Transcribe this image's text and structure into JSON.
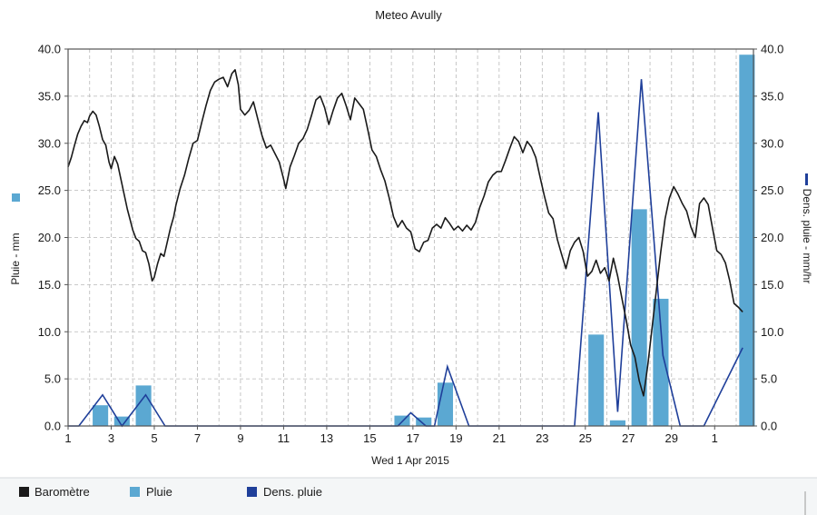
{
  "chart_data": {
    "type": "bar",
    "title": "Meteo  Avully",
    "xlabel": "Wed 1 Apr 2015",
    "ylabel_left": "Pluie - mm",
    "ylabel_right": "Dens. pluie - mm/hr",
    "x_tick_labels": [
      "1",
      "3",
      "5",
      "7",
      "9",
      "11",
      "13",
      "15",
      "17",
      "19",
      "21",
      "23",
      "25",
      "27",
      "29",
      "1"
    ],
    "y_ticks": [
      "0.0",
      "5.0",
      "10.0",
      "15.0",
      "20.0",
      "25.0",
      "30.0",
      "35.0",
      "40.0"
    ],
    "ylim": [
      0,
      40
    ],
    "xlim": [
      1,
      32.8
    ],
    "grid": true,
    "legend_position": "bottom-left",
    "colors": {
      "barometre": "#1a1a1a",
      "pluie": "#5ba8d2",
      "dens_pluie": "#1f3f9a",
      "grid": "#b8b8b8",
      "frame": "#555555"
    },
    "series": [
      {
        "name": "Baromètre",
        "type": "line",
        "axis": "left",
        "points": [
          [
            1.0,
            27.5
          ],
          [
            1.15,
            28.5
          ],
          [
            1.3,
            29.8
          ],
          [
            1.45,
            31.0
          ],
          [
            1.6,
            31.8
          ],
          [
            1.75,
            32.4
          ],
          [
            1.9,
            32.2
          ],
          [
            2.0,
            32.9
          ],
          [
            2.15,
            33.4
          ],
          [
            2.3,
            33.0
          ],
          [
            2.45,
            31.8
          ],
          [
            2.6,
            30.4
          ],
          [
            2.75,
            29.8
          ],
          [
            2.9,
            28.0
          ],
          [
            3.0,
            27.3
          ],
          [
            3.15,
            28.6
          ],
          [
            3.3,
            27.8
          ],
          [
            3.45,
            26.2
          ],
          [
            3.6,
            24.6
          ],
          [
            3.75,
            23.0
          ],
          [
            3.9,
            21.7
          ],
          [
            4.0,
            20.8
          ],
          [
            4.15,
            19.9
          ],
          [
            4.3,
            19.6
          ],
          [
            4.45,
            18.6
          ],
          [
            4.6,
            18.4
          ],
          [
            4.75,
            17.2
          ],
          [
            4.9,
            15.4
          ],
          [
            5.0,
            15.8
          ],
          [
            5.15,
            17.2
          ],
          [
            5.3,
            18.3
          ],
          [
            5.45,
            18.0
          ],
          [
            5.6,
            19.5
          ],
          [
            5.75,
            21.0
          ],
          [
            5.9,
            22.2
          ],
          [
            6.0,
            23.4
          ],
          [
            6.2,
            25.2
          ],
          [
            6.4,
            26.6
          ],
          [
            6.6,
            28.4
          ],
          [
            6.8,
            30.0
          ],
          [
            7.0,
            30.3
          ],
          [
            7.2,
            32.2
          ],
          [
            7.4,
            34.0
          ],
          [
            7.6,
            35.6
          ],
          [
            7.8,
            36.5
          ],
          [
            8.0,
            36.8
          ],
          [
            8.2,
            37.0
          ],
          [
            8.4,
            36.0
          ],
          [
            8.6,
            37.4
          ],
          [
            8.75,
            37.8
          ],
          [
            8.9,
            36.2
          ],
          [
            9.0,
            33.6
          ],
          [
            9.2,
            33.0
          ],
          [
            9.4,
            33.5
          ],
          [
            9.6,
            34.4
          ],
          [
            9.8,
            32.6
          ],
          [
            10.0,
            30.8
          ],
          [
            10.2,
            29.5
          ],
          [
            10.4,
            29.8
          ],
          [
            10.6,
            28.9
          ],
          [
            10.8,
            28.0
          ],
          [
            11.0,
            26.2
          ],
          [
            11.1,
            25.2
          ],
          [
            11.3,
            27.5
          ],
          [
            11.5,
            28.7
          ],
          [
            11.7,
            30.0
          ],
          [
            11.9,
            30.5
          ],
          [
            12.1,
            31.5
          ],
          [
            12.3,
            33.0
          ],
          [
            12.5,
            34.6
          ],
          [
            12.7,
            35.0
          ],
          [
            12.9,
            33.8
          ],
          [
            13.1,
            32.0
          ],
          [
            13.3,
            33.5
          ],
          [
            13.5,
            34.8
          ],
          [
            13.7,
            35.3
          ],
          [
            13.9,
            34.0
          ],
          [
            14.1,
            32.5
          ],
          [
            14.3,
            34.8
          ],
          [
            14.5,
            34.2
          ],
          [
            14.7,
            33.6
          ],
          [
            14.9,
            31.5
          ],
          [
            15.1,
            29.3
          ],
          [
            15.3,
            28.6
          ],
          [
            15.5,
            27.2
          ],
          [
            15.7,
            26.0
          ],
          [
            15.9,
            24.2
          ],
          [
            16.1,
            22.2
          ],
          [
            16.3,
            21.1
          ],
          [
            16.5,
            21.8
          ],
          [
            16.7,
            21.0
          ],
          [
            16.9,
            20.6
          ],
          [
            17.1,
            18.8
          ],
          [
            17.3,
            18.5
          ],
          [
            17.5,
            19.5
          ],
          [
            17.7,
            19.7
          ],
          [
            17.9,
            21.0
          ],
          [
            18.1,
            21.4
          ],
          [
            18.3,
            21.0
          ],
          [
            18.5,
            22.1
          ],
          [
            18.7,
            21.5
          ],
          [
            18.9,
            20.8
          ],
          [
            19.1,
            21.2
          ],
          [
            19.3,
            20.7
          ],
          [
            19.5,
            21.3
          ],
          [
            19.7,
            20.8
          ],
          [
            19.9,
            21.6
          ],
          [
            20.1,
            23.2
          ],
          [
            20.3,
            24.4
          ],
          [
            20.5,
            25.9
          ],
          [
            20.7,
            26.6
          ],
          [
            20.9,
            27.0
          ],
          [
            21.1,
            27.0
          ],
          [
            21.3,
            28.2
          ],
          [
            21.5,
            29.5
          ],
          [
            21.7,
            30.7
          ],
          [
            21.9,
            30.2
          ],
          [
            22.1,
            29.0
          ],
          [
            22.3,
            30.2
          ],
          [
            22.5,
            29.6
          ],
          [
            22.7,
            28.5
          ],
          [
            22.9,
            26.4
          ],
          [
            23.1,
            24.4
          ],
          [
            23.3,
            22.6
          ],
          [
            23.5,
            22.0
          ],
          [
            23.7,
            19.8
          ],
          [
            23.9,
            18.2
          ],
          [
            24.1,
            16.7
          ],
          [
            24.3,
            18.6
          ],
          [
            24.5,
            19.5
          ],
          [
            24.7,
            20.0
          ],
          [
            24.9,
            18.5
          ],
          [
            25.1,
            15.9
          ],
          [
            25.3,
            16.4
          ],
          [
            25.5,
            17.6
          ],
          [
            25.7,
            16.2
          ],
          [
            25.9,
            16.8
          ],
          [
            26.1,
            15.4
          ],
          [
            26.3,
            17.8
          ],
          [
            26.5,
            15.9
          ],
          [
            26.7,
            13.5
          ],
          [
            26.9,
            11.2
          ],
          [
            27.1,
            8.6
          ],
          [
            27.3,
            7.3
          ],
          [
            27.5,
            4.8
          ],
          [
            27.7,
            3.2
          ],
          [
            27.9,
            6.5
          ],
          [
            28.1,
            10.5
          ],
          [
            28.3,
            14.5
          ],
          [
            28.5,
            18.5
          ],
          [
            28.7,
            22.0
          ],
          [
            28.9,
            24.2
          ],
          [
            29.1,
            25.4
          ],
          [
            29.3,
            24.6
          ],
          [
            29.5,
            23.6
          ],
          [
            29.7,
            22.8
          ],
          [
            29.9,
            21.1
          ],
          [
            30.1,
            20.0
          ],
          [
            30.3,
            23.6
          ],
          [
            30.5,
            24.2
          ],
          [
            30.7,
            23.5
          ],
          [
            30.9,
            21.0
          ],
          [
            31.1,
            18.6
          ],
          [
            31.3,
            18.2
          ],
          [
            31.5,
            17.3
          ],
          [
            31.7,
            15.4
          ],
          [
            31.9,
            13.0
          ],
          [
            32.1,
            12.6
          ],
          [
            32.3,
            12.1
          ]
        ]
      },
      {
        "name": "Pluie",
        "type": "bar",
        "axis": "left",
        "bars": [
          {
            "x": 2.5,
            "value": 2.2
          },
          {
            "x": 3.5,
            "value": 1.0
          },
          {
            "x": 4.5,
            "value": 4.3
          },
          {
            "x": 16.5,
            "value": 1.1
          },
          {
            "x": 17.5,
            "value": 0.9
          },
          {
            "x": 18.5,
            "value": 4.6
          },
          {
            "x": 25.5,
            "value": 9.7
          },
          {
            "x": 26.5,
            "value": 0.6
          },
          {
            "x": 27.5,
            "value": 23.0
          },
          {
            "x": 28.5,
            "value": 13.5
          },
          {
            "x": 32.5,
            "value": 39.4
          }
        ]
      },
      {
        "name": "Dens. pluie",
        "type": "line",
        "axis": "right",
        "points": [
          [
            1.0,
            0.0
          ],
          [
            1.5,
            0.0
          ],
          [
            2.6,
            3.3
          ],
          [
            3.5,
            0.0
          ],
          [
            4.6,
            3.3
          ],
          [
            5.5,
            0.0
          ],
          [
            15.5,
            0.0
          ],
          [
            16.3,
            0.0
          ],
          [
            16.9,
            1.4
          ],
          [
            17.6,
            0.0
          ],
          [
            18.0,
            0.0
          ],
          [
            18.6,
            6.3
          ],
          [
            19.6,
            0.0
          ],
          [
            24.5,
            0.0
          ],
          [
            25.6,
            33.3
          ],
          [
            26.5,
            1.5
          ],
          [
            27.6,
            36.8
          ],
          [
            28.6,
            7.5
          ],
          [
            29.4,
            0.0
          ],
          [
            30.5,
            0.0
          ],
          [
            32.3,
            8.3
          ]
        ]
      }
    ]
  },
  "legend": {
    "items": [
      {
        "label": "Baromètre",
        "color": "#1a1a1a"
      },
      {
        "label": "Pluie",
        "color": "#5ba8d2"
      },
      {
        "label": "Dens. pluie",
        "color": "#1f3f9a"
      }
    ]
  }
}
